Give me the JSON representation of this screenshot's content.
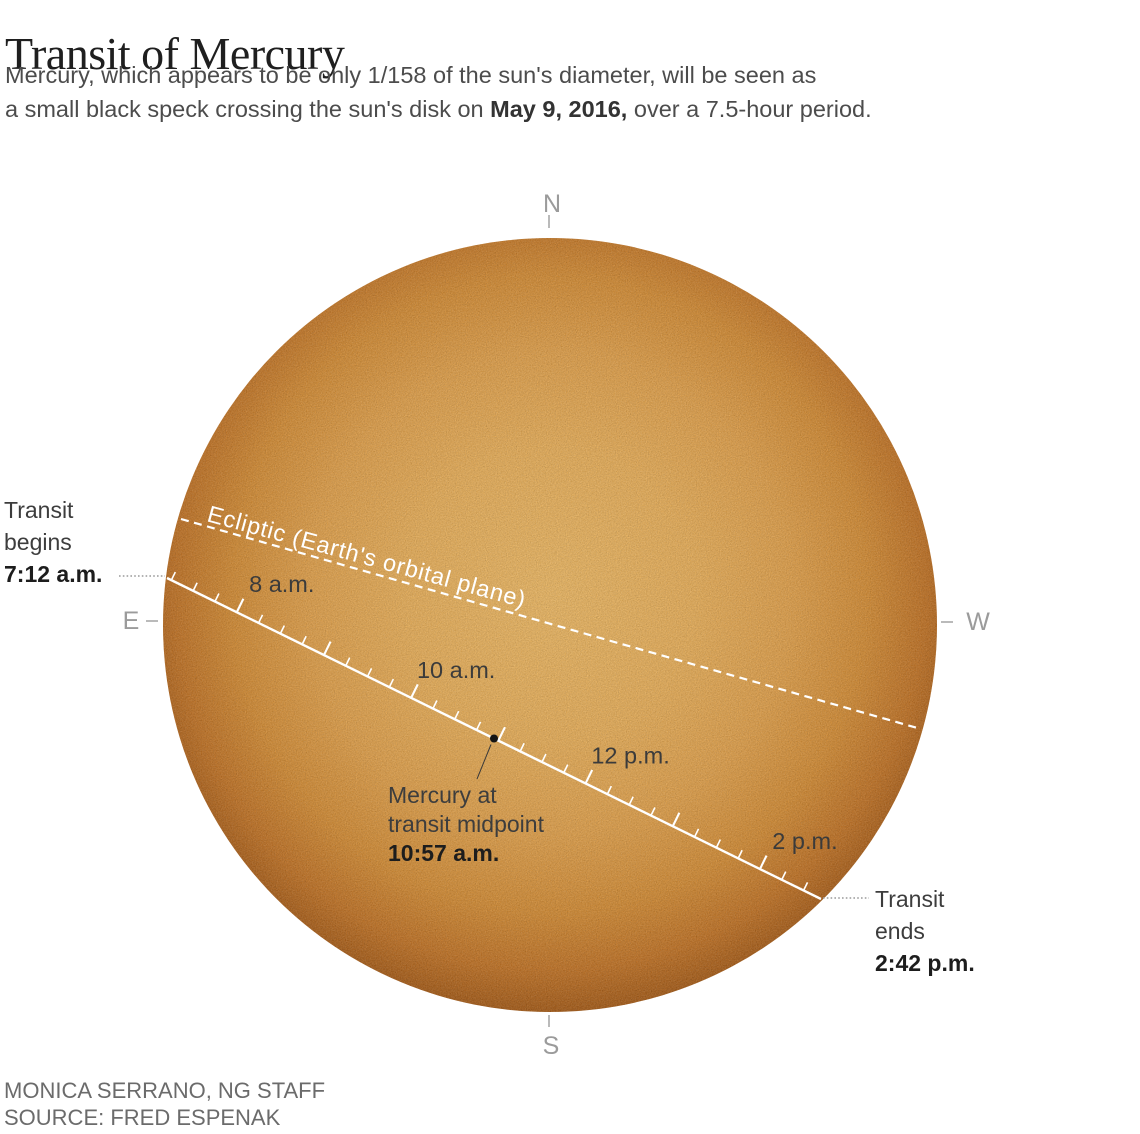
{
  "header": {
    "title": "Transit of Mercury",
    "subtitle_line1": "Mercury, which appears to be only 1/158 of the sun's diameter, will be seen as",
    "subtitle_line2_pre": "a small black speck crossing the sun's disk on ",
    "subtitle_line2_bold": "May 9, 2016,",
    "subtitle_line2_post": " over a 7.5-hour period."
  },
  "compass": {
    "north": "N",
    "south": "S",
    "east": "E",
    "west": "W"
  },
  "sun": {
    "ecliptic_label": "Ecliptic (Earth's orbital plane)"
  },
  "transit": {
    "begins": {
      "label_line1": "Transit",
      "label_line2": "begins",
      "time": "7:12 a.m."
    },
    "midpoint": {
      "label_line1": "Mercury at",
      "label_line2": "transit midpoint",
      "time": "10:57 a.m."
    },
    "ends": {
      "label_line1": "Transit",
      "label_line2": "ends",
      "time": "2:42 p.m."
    },
    "timeline": {
      "start_hour": 7.2,
      "end_hour": 14.7,
      "midpoint_hour": 10.95,
      "tick_interval_minutes": 15
    },
    "hour_labels": [
      {
        "label": "8 a.m.",
        "hour": 8
      },
      {
        "label": "10 a.m.",
        "hour": 10
      },
      {
        "label": "12 p.m.",
        "hour": 12
      },
      {
        "label": "2 p.m.",
        "hour": 14
      }
    ]
  },
  "credits": {
    "byline": "MONICA SERRANO, NG STAFF",
    "source": "SOURCE: FRED ESPENAK"
  },
  "colors": {
    "sun_center": "#F0BA63",
    "sun_edge": "#A75B15",
    "path_line": "#FFFFFF",
    "label_dark": "#3b3b3b",
    "compass_gray": "#9B9B9B",
    "leader_gray": "#9A9A9A"
  }
}
